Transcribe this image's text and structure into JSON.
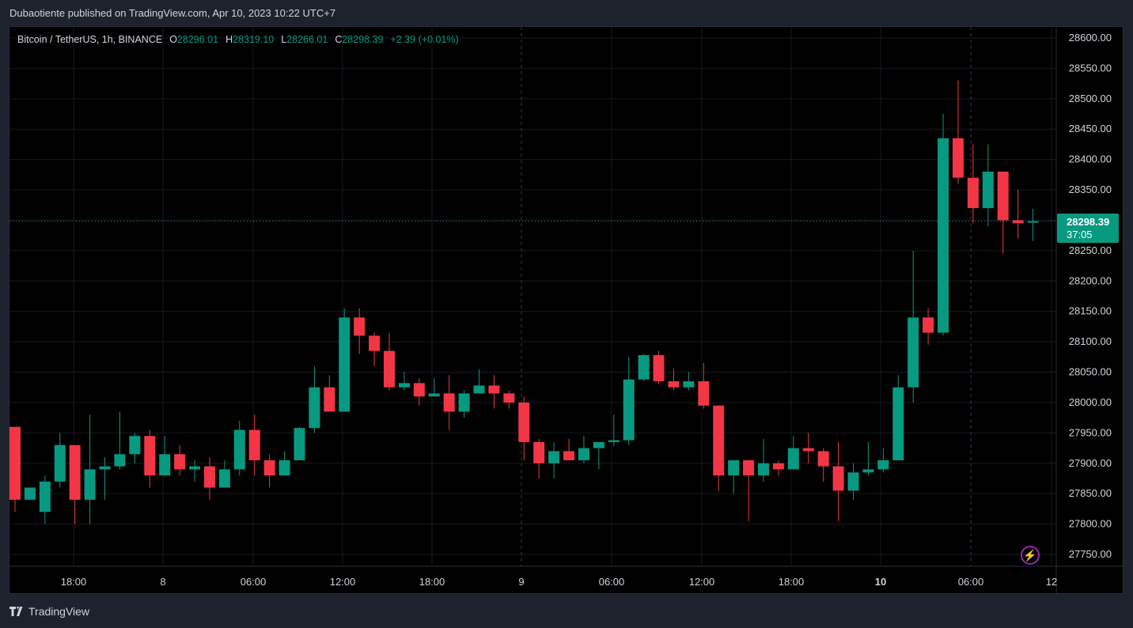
{
  "header": {
    "text": "Dubaotiente published on TradingView.com, Apr 10, 2023 10:22 UTC+7"
  },
  "legend": {
    "symbol": "Bitcoin / TetherUS, 1h, BINANCE",
    "o_label": "O",
    "o": "28296.01",
    "h_label": "H",
    "h": "28319.10",
    "l_label": "L",
    "l": "28266.01",
    "c_label": "C",
    "c": "28298.39",
    "change": "+2.39 (+0.01%)"
  },
  "last_price": {
    "price": "28298.39",
    "countdown": "37:05"
  },
  "footer": {
    "brand": "TradingView"
  },
  "colors": {
    "up": "#089981",
    "down": "#f23645",
    "background": "#000000"
  },
  "chart_data": {
    "type": "candlestick",
    "y_range": [
      27720,
      28630
    ],
    "y_ticks": [
      "28600.00",
      "28550.00",
      "28500.00",
      "28450.00",
      "28400.00",
      "28350.00",
      "28300.00",
      "28250.00",
      "28200.00",
      "28150.00",
      "28100.00",
      "28050.00",
      "28000.00",
      "27950.00",
      "27900.00",
      "27850.00",
      "27800.00",
      "27750.00"
    ],
    "x_ticks": [
      "18:00",
      "8",
      "06:00",
      "12:00",
      "18:00",
      "9",
      "06:00",
      "12:00",
      "18:00",
      "10",
      "06:00",
      "12"
    ],
    "grid": true,
    "candles": [
      [
        27960,
        27840,
        27960,
        27820
      ],
      [
        27840,
        27860,
        27820,
        27820
      ],
      [
        27820,
        27870,
        27880,
        27800
      ],
      [
        27870,
        27930,
        27950,
        27860
      ],
      [
        27930,
        27840,
        27930,
        27800
      ],
      [
        27840,
        27890,
        27980,
        27800
      ],
      [
        27890,
        27895,
        27910,
        27840
      ],
      [
        27895,
        27915,
        27985,
        27890
      ],
      [
        27915,
        27945,
        27950,
        27900
      ],
      [
        27945,
        27880,
        27955,
        27860
      ],
      [
        27880,
        27915,
        27945,
        27880
      ],
      [
        27915,
        27890,
        27930,
        27880
      ],
      [
        27890,
        27895,
        27905,
        27870
      ],
      [
        27895,
        27860,
        27910,
        27840
      ],
      [
        27860,
        27890,
        27905,
        27860
      ],
      [
        27890,
        27955,
        27970,
        27880
      ],
      [
        27955,
        27905,
        27980,
        27880
      ],
      [
        27905,
        27880,
        27915,
        27860
      ],
      [
        27880,
        27905,
        27920,
        27880
      ],
      [
        27905,
        27958,
        27960,
        27905
      ],
      [
        27958,
        28025,
        28060,
        27950
      ],
      [
        28025,
        27985,
        28045,
        27985
      ],
      [
        27985,
        28140,
        28155,
        27985
      ],
      [
        28140,
        28110,
        28155,
        28080
      ],
      [
        28110,
        28085,
        28115,
        28060
      ],
      [
        28085,
        28025,
        28115,
        28020
      ],
      [
        28025,
        28032,
        28050,
        28020
      ],
      [
        28032,
        28010,
        28040,
        27995
      ],
      [
        28010,
        28015,
        28040,
        28010
      ],
      [
        28015,
        27985,
        28045,
        27955
      ],
      [
        27985,
        28015,
        28020,
        27975
      ],
      [
        28015,
        28028,
        28055,
        28015
      ],
      [
        28028,
        28015,
        28045,
        27990
      ],
      [
        28015,
        28000,
        28020,
        27990
      ],
      [
        28000,
        27935,
        28010,
        27905
      ],
      [
        27935,
        27900,
        27940,
        27875
      ],
      [
        27900,
        27920,
        27935,
        27875
      ],
      [
        27920,
        27905,
        27940,
        27905
      ],
      [
        27905,
        27925,
        27945,
        27900
      ],
      [
        27925,
        27935,
        27935,
        27890
      ],
      [
        27935,
        27938,
        27980,
        27928
      ],
      [
        27938,
        28038,
        28075,
        27930
      ],
      [
        28038,
        28078,
        28080,
        28035
      ],
      [
        28078,
        28035,
        28085,
        28030
      ],
      [
        28035,
        28025,
        28055,
        28020
      ],
      [
        28025,
        28035,
        28050,
        28020
      ],
      [
        28035,
        27995,
        28065,
        27990
      ],
      [
        27995,
        27880,
        27995,
        27855
      ],
      [
        27880,
        27905,
        27905,
        27850
      ],
      [
        27905,
        27880,
        27905,
        27805
      ],
      [
        27880,
        27900,
        27940,
        27870
      ],
      [
        27900,
        27890,
        27905,
        27880
      ],
      [
        27890,
        27925,
        27945,
        27890
      ],
      [
        27925,
        27920,
        27950,
        27900
      ],
      [
        27920,
        27895,
        27925,
        27870
      ],
      [
        27895,
        27855,
        27935,
        27805
      ],
      [
        27855,
        27885,
        27900,
        27840
      ],
      [
        27885,
        27890,
        27935,
        27880
      ],
      [
        27890,
        27905,
        27925,
        27885
      ],
      [
        27905,
        28025,
        28045,
        27905
      ],
      [
        28025,
        28140,
        28250,
        28000
      ],
      [
        28140,
        28115,
        28155,
        28095
      ],
      [
        28115,
        28435,
        28475,
        28110
      ],
      [
        28435,
        28370,
        28530,
        28360
      ],
      [
        28370,
        28320,
        28425,
        28295
      ],
      [
        28320,
        28380,
        28425,
        28290
      ],
      [
        28380,
        28300,
        28380,
        28245
      ],
      [
        28300,
        28295,
        28350,
        28270
      ],
      [
        28296,
        28298.39,
        28319.1,
        28266.01
      ]
    ]
  }
}
